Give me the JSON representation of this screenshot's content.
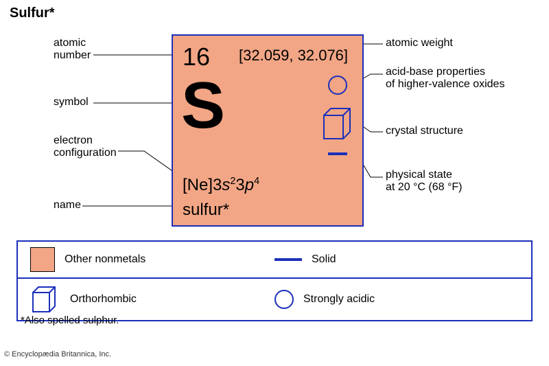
{
  "title": "Sulfur*",
  "tile": {
    "background_color": "#f2a685",
    "border_color": "#1b2fba",
    "atomic_number": "16",
    "atomic_weight": "[32.059, 32.076]",
    "symbol": "S",
    "electron_configuration_html": "[Ne]3<span class='italic'>s</span><sup>2</sup>3<span class='italic'>p</span><sup>4</sup>",
    "name": "sulfur*",
    "icon_color": "#1b2fba"
  },
  "labels_left": {
    "atomic_number": "atomic\nnumber",
    "symbol": "symbol",
    "electron_configuration": "electron\nconfiguration",
    "name": "name"
  },
  "labels_right": {
    "atomic_weight": "atomic weight",
    "acid_base": "acid-base properties\nof higher-valence oxides",
    "crystal": "crystal structure",
    "state": "physical state\nat 20 °C (68 °F)"
  },
  "legend": {
    "border_color": "#1b2fba",
    "rows": [
      {
        "left": {
          "swatch_color": "#f2a685",
          "text": "Other nonmetals"
        },
        "right": {
          "icon": "line",
          "color": "#1b2fba",
          "text": "Solid"
        }
      },
      {
        "left": {
          "icon": "cube",
          "color": "#1b2fba",
          "text": "Orthorhombic"
        },
        "right": {
          "icon": "circle",
          "color": "#1b2fba",
          "text": "Strongly acidic"
        }
      }
    ]
  },
  "footnote": "*Also spelled sulphur.",
  "copyright": "© Encyclopædia Britannica, Inc.",
  "leader_color": "#000000"
}
